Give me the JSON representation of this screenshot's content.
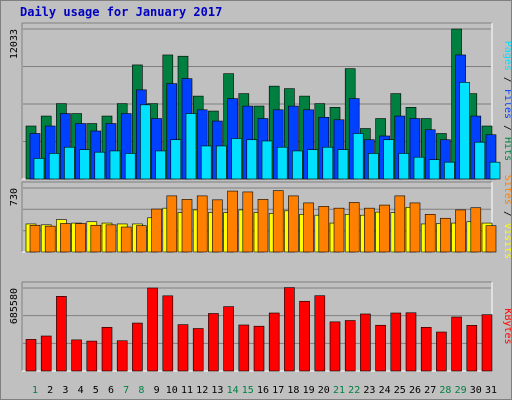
{
  "chart_data": [
    {
      "type": "bar",
      "title": "Daily usage for January 2017",
      "panel": "pages-files-hits",
      "x": [
        "1",
        "2",
        "3",
        "4",
        "5",
        "6",
        "7",
        "8",
        "9",
        "10",
        "11",
        "12",
        "13",
        "14",
        "15",
        "16",
        "17",
        "18",
        "19",
        "20",
        "21",
        "22",
        "23",
        "24",
        "25",
        "26",
        "27",
        "28",
        "29",
        "30",
        "31"
      ],
      "weekend_days": [
        "1",
        "7",
        "8",
        "14",
        "15",
        "21",
        "22",
        "28",
        "29"
      ],
      "ymax_label": "12033",
      "ylim": [
        0,
        12033
      ],
      "grid": true,
      "right_label_parts": [
        {
          "text": "Pages",
          "color": "#00e0ff"
        },
        {
          "text": " / ",
          "color": "#000000"
        },
        {
          "text": "Files",
          "color": "#0040ff"
        },
        {
          "text": " / ",
          "color": "#000000"
        },
        {
          "text": "Hits",
          "color": "#008040"
        }
      ],
      "series": [
        {
          "name": "Hits",
          "color": "#008040",
          "values": [
            4250,
            5050,
            6050,
            5250,
            4450,
            5050,
            6050,
            9150,
            6050,
            9950,
            9850,
            6650,
            5450,
            8450,
            6850,
            5850,
            7450,
            7250,
            6650,
            6050,
            5750,
            8850,
            4050,
            4850,
            6850,
            5750,
            4850,
            3650,
            12033,
            6850,
            4250
          ]
        },
        {
          "name": "Files",
          "color": "#0040ff",
          "values": [
            3650,
            4250,
            5250,
            4450,
            3850,
            4450,
            5250,
            7150,
            4850,
            7650,
            8050,
            5550,
            4650,
            6450,
            5850,
            4850,
            5550,
            5850,
            5550,
            4950,
            4750,
            6450,
            3150,
            3450,
            5050,
            4850,
            3950,
            3150,
            9950,
            5050,
            3550
          ]
        },
        {
          "name": "Pages",
          "color": "#00e0ff",
          "values": [
            1650,
            2050,
            2550,
            2350,
            2150,
            2250,
            2050,
            5950,
            2250,
            3150,
            5250,
            2650,
            2650,
            3250,
            3150,
            3050,
            2550,
            2250,
            2350,
            2550,
            2350,
            3650,
            2050,
            3150,
            2050,
            1750,
            1550,
            1350,
            7750,
            2950,
            1350
          ]
        }
      ]
    },
    {
      "type": "bar",
      "panel": "sites-visits",
      "x": [
        "1",
        "2",
        "3",
        "4",
        "5",
        "6",
        "7",
        "8",
        "9",
        "10",
        "11",
        "12",
        "13",
        "14",
        "15",
        "16",
        "17",
        "18",
        "19",
        "20",
        "21",
        "22",
        "23",
        "24",
        "25",
        "26",
        "27",
        "28",
        "29",
        "30",
        "31"
      ],
      "ymax_label": "730",
      "ylim": [
        0,
        730
      ],
      "grid": true,
      "right_label_parts": [
        {
          "text": "Sites",
          "color": "#ff8000"
        },
        {
          "text": " / ",
          "color": "#000000"
        },
        {
          "text": "Visits",
          "color": "#ffff00"
        }
      ],
      "series": [
        {
          "name": "Visits",
          "color": "#ffff00",
          "values": [
            320,
            310,
            370,
            330,
            345,
            330,
            320,
            320,
            390,
            500,
            450,
            480,
            450,
            450,
            480,
            450,
            440,
            470,
            430,
            420,
            330,
            430,
            420,
            455,
            450,
            510,
            320,
            325,
            330,
            345,
            330
          ]
        },
        {
          "name": "Sites",
          "color": "#ff8000",
          "values": [
            305,
            295,
            325,
            325,
            305,
            310,
            285,
            300,
            490,
            640,
            600,
            640,
            595,
            695,
            685,
            600,
            700,
            640,
            560,
            520,
            500,
            565,
            500,
            535,
            640,
            560,
            430,
            385,
            480,
            505,
            300
          ]
        }
      ]
    },
    {
      "type": "bar",
      "panel": "kbytes",
      "x": [
        "1",
        "2",
        "3",
        "4",
        "5",
        "6",
        "7",
        "8",
        "9",
        "10",
        "11",
        "12",
        "13",
        "14",
        "15",
        "16",
        "17",
        "18",
        "19",
        "20",
        "21",
        "22",
        "23",
        "24",
        "25",
        "26",
        "27",
        "28",
        "29",
        "30",
        "31"
      ],
      "ymax_label": "685580",
      "ylim": [
        0,
        685580
      ],
      "grid": true,
      "right_label_parts": [
        {
          "text": "KBytes",
          "color": "#ff0000"
        }
      ],
      "series": [
        {
          "name": "KBytes",
          "color": "#ff0000",
          "values": [
            261000,
            289000,
            617000,
            257000,
            247000,
            361000,
            250000,
            396000,
            685580,
            621000,
            383000,
            351000,
            475000,
            532000,
            380000,
            370000,
            479000,
            689000,
            576000,
            622000,
            406000,
            417000,
            471000,
            378000,
            479000,
            481000,
            361000,
            322000,
            446000,
            377000,
            465000
          ]
        }
      ]
    }
  ]
}
